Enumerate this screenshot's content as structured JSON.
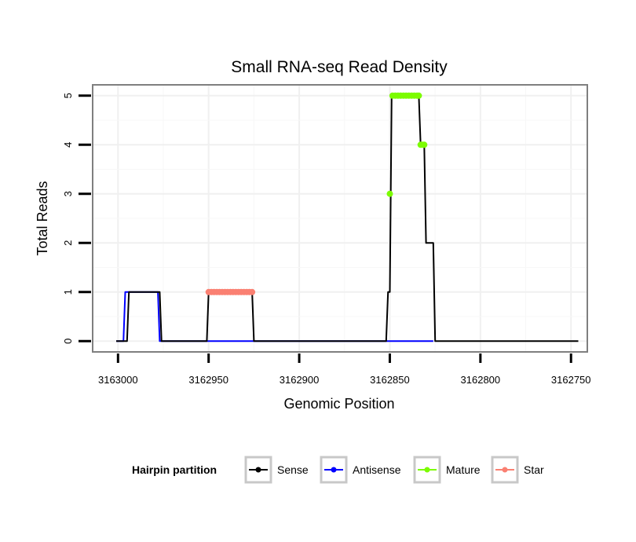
{
  "chart_data": {
    "type": "line",
    "title": "Small RNA-seq Read Density",
    "xlabel": "Genomic Position",
    "ylabel": "Total Reads",
    "xlim": [
      3163014,
      3162741
    ],
    "x_reversed": true,
    "ylim": [
      -0.22,
      5.22
    ],
    "x_ticks": [
      3163000,
      3162950,
      3162900,
      3162850,
      3162800,
      3162750
    ],
    "x_tick_labels": [
      "3163000",
      "3162950",
      "3162900",
      "3162850",
      "3162800",
      "3162750"
    ],
    "y_ticks": [
      0,
      1,
      2,
      3,
      4,
      5
    ],
    "y_tick_labels": [
      "0",
      "1",
      "2",
      "3",
      "4",
      "5"
    ],
    "grid": true,
    "legend": {
      "title": "Hairpin partition",
      "placement": "bottom",
      "entries": [
        {
          "name": "Sense",
          "color": "#000000"
        },
        {
          "name": "Antisense",
          "color": "#0000ff"
        },
        {
          "name": "Mature",
          "color": "#7cfc00"
        },
        {
          "name": "Star",
          "color": "#fa8072"
        }
      ]
    },
    "series": [
      {
        "name": "Sense",
        "color": "#000000",
        "x": [
          3163001,
          3162995,
          3162994,
          3162977,
          3162976,
          3162951,
          3162950,
          3162926,
          3162925,
          3162852,
          3162851,
          3162850,
          3162849,
          3162834,
          3162833,
          3162831,
          3162830,
          3162826,
          3162825,
          3162746
        ],
        "y": [
          0,
          0,
          1,
          1,
          0,
          0,
          1,
          1,
          0,
          0,
          1,
          1,
          5,
          5,
          4,
          4,
          2,
          2,
          0,
          0
        ]
      },
      {
        "name": "Antisense",
        "color": "#0000ff",
        "x": [
          3163001,
          3162997,
          3162996,
          3162978,
          3162977,
          3162826
        ],
        "y": [
          0,
          0,
          1,
          1,
          0,
          0
        ]
      },
      {
        "name": "Mature",
        "color": "#7cfc00",
        "points": [
          [
            3162850,
            3
          ],
          [
            3162848.5,
            5
          ],
          [
            3162847,
            5
          ],
          [
            3162845.5,
            5
          ],
          [
            3162844,
            5
          ],
          [
            3162842.5,
            5
          ],
          [
            3162841,
            5
          ],
          [
            3162839.5,
            5
          ],
          [
            3162838,
            5
          ],
          [
            3162836.5,
            5
          ],
          [
            3162835,
            5
          ],
          [
            3162834,
            5
          ],
          [
            3162833,
            4
          ],
          [
            3162832,
            4
          ],
          [
            3162831,
            4
          ]
        ]
      },
      {
        "name": "Star",
        "color": "#fa8072",
        "points": [
          [
            3162950,
            1
          ],
          [
            3162948.5,
            1
          ],
          [
            3162947,
            1
          ],
          [
            3162945.5,
            1
          ],
          [
            3162944,
            1
          ],
          [
            3162942.5,
            1
          ],
          [
            3162941,
            1
          ],
          [
            3162939.5,
            1
          ],
          [
            3162938,
            1
          ],
          [
            3162936.5,
            1
          ],
          [
            3162935,
            1
          ],
          [
            3162933.5,
            1
          ],
          [
            3162932,
            1
          ],
          [
            3162930.5,
            1
          ],
          [
            3162929,
            1
          ],
          [
            3162927.5,
            1
          ],
          [
            3162926,
            1
          ]
        ]
      }
    ]
  }
}
